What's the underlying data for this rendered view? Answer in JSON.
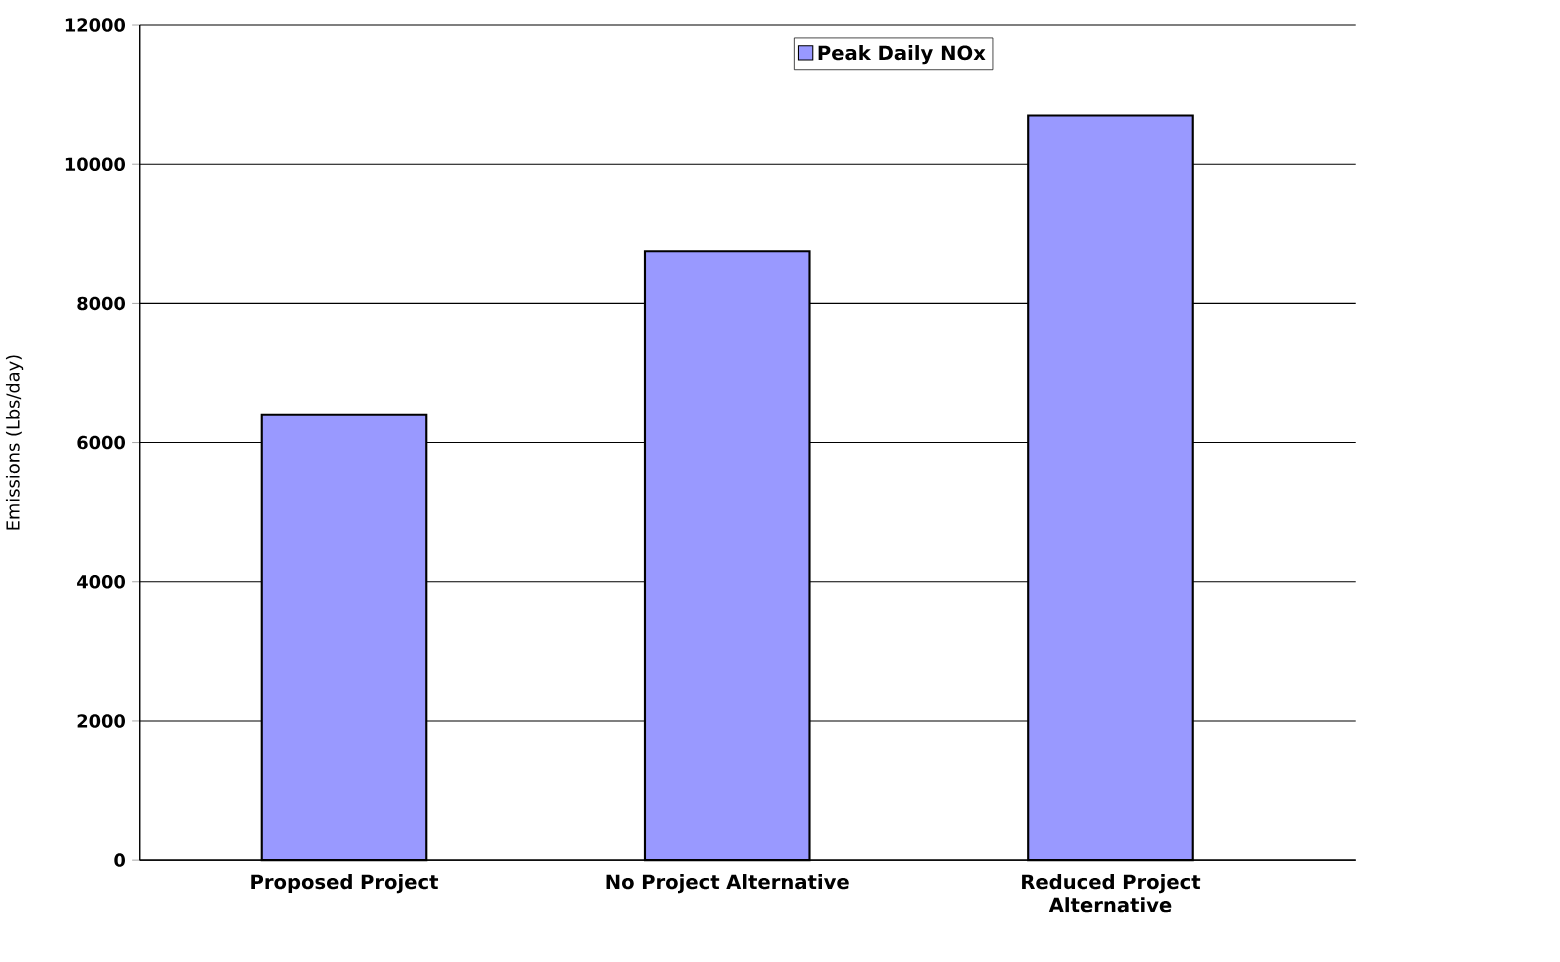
{
  "chart_data": {
    "type": "bar",
    "ylabel": "Emissions (Lbs/day)",
    "categories": [
      "Proposed Project",
      "No Project Alternative",
      "Reduced Project Alternative"
    ],
    "series": [
      {
        "name": "Peak Daily NOx",
        "color": "#9999ff",
        "values": [
          6400,
          8750,
          10700
        ]
      }
    ],
    "ylim": [
      0,
      12000
    ],
    "yticks": [
      0,
      2000,
      4000,
      6000,
      8000,
      10000,
      12000
    ],
    "grid": "y",
    "legend": "top"
  }
}
